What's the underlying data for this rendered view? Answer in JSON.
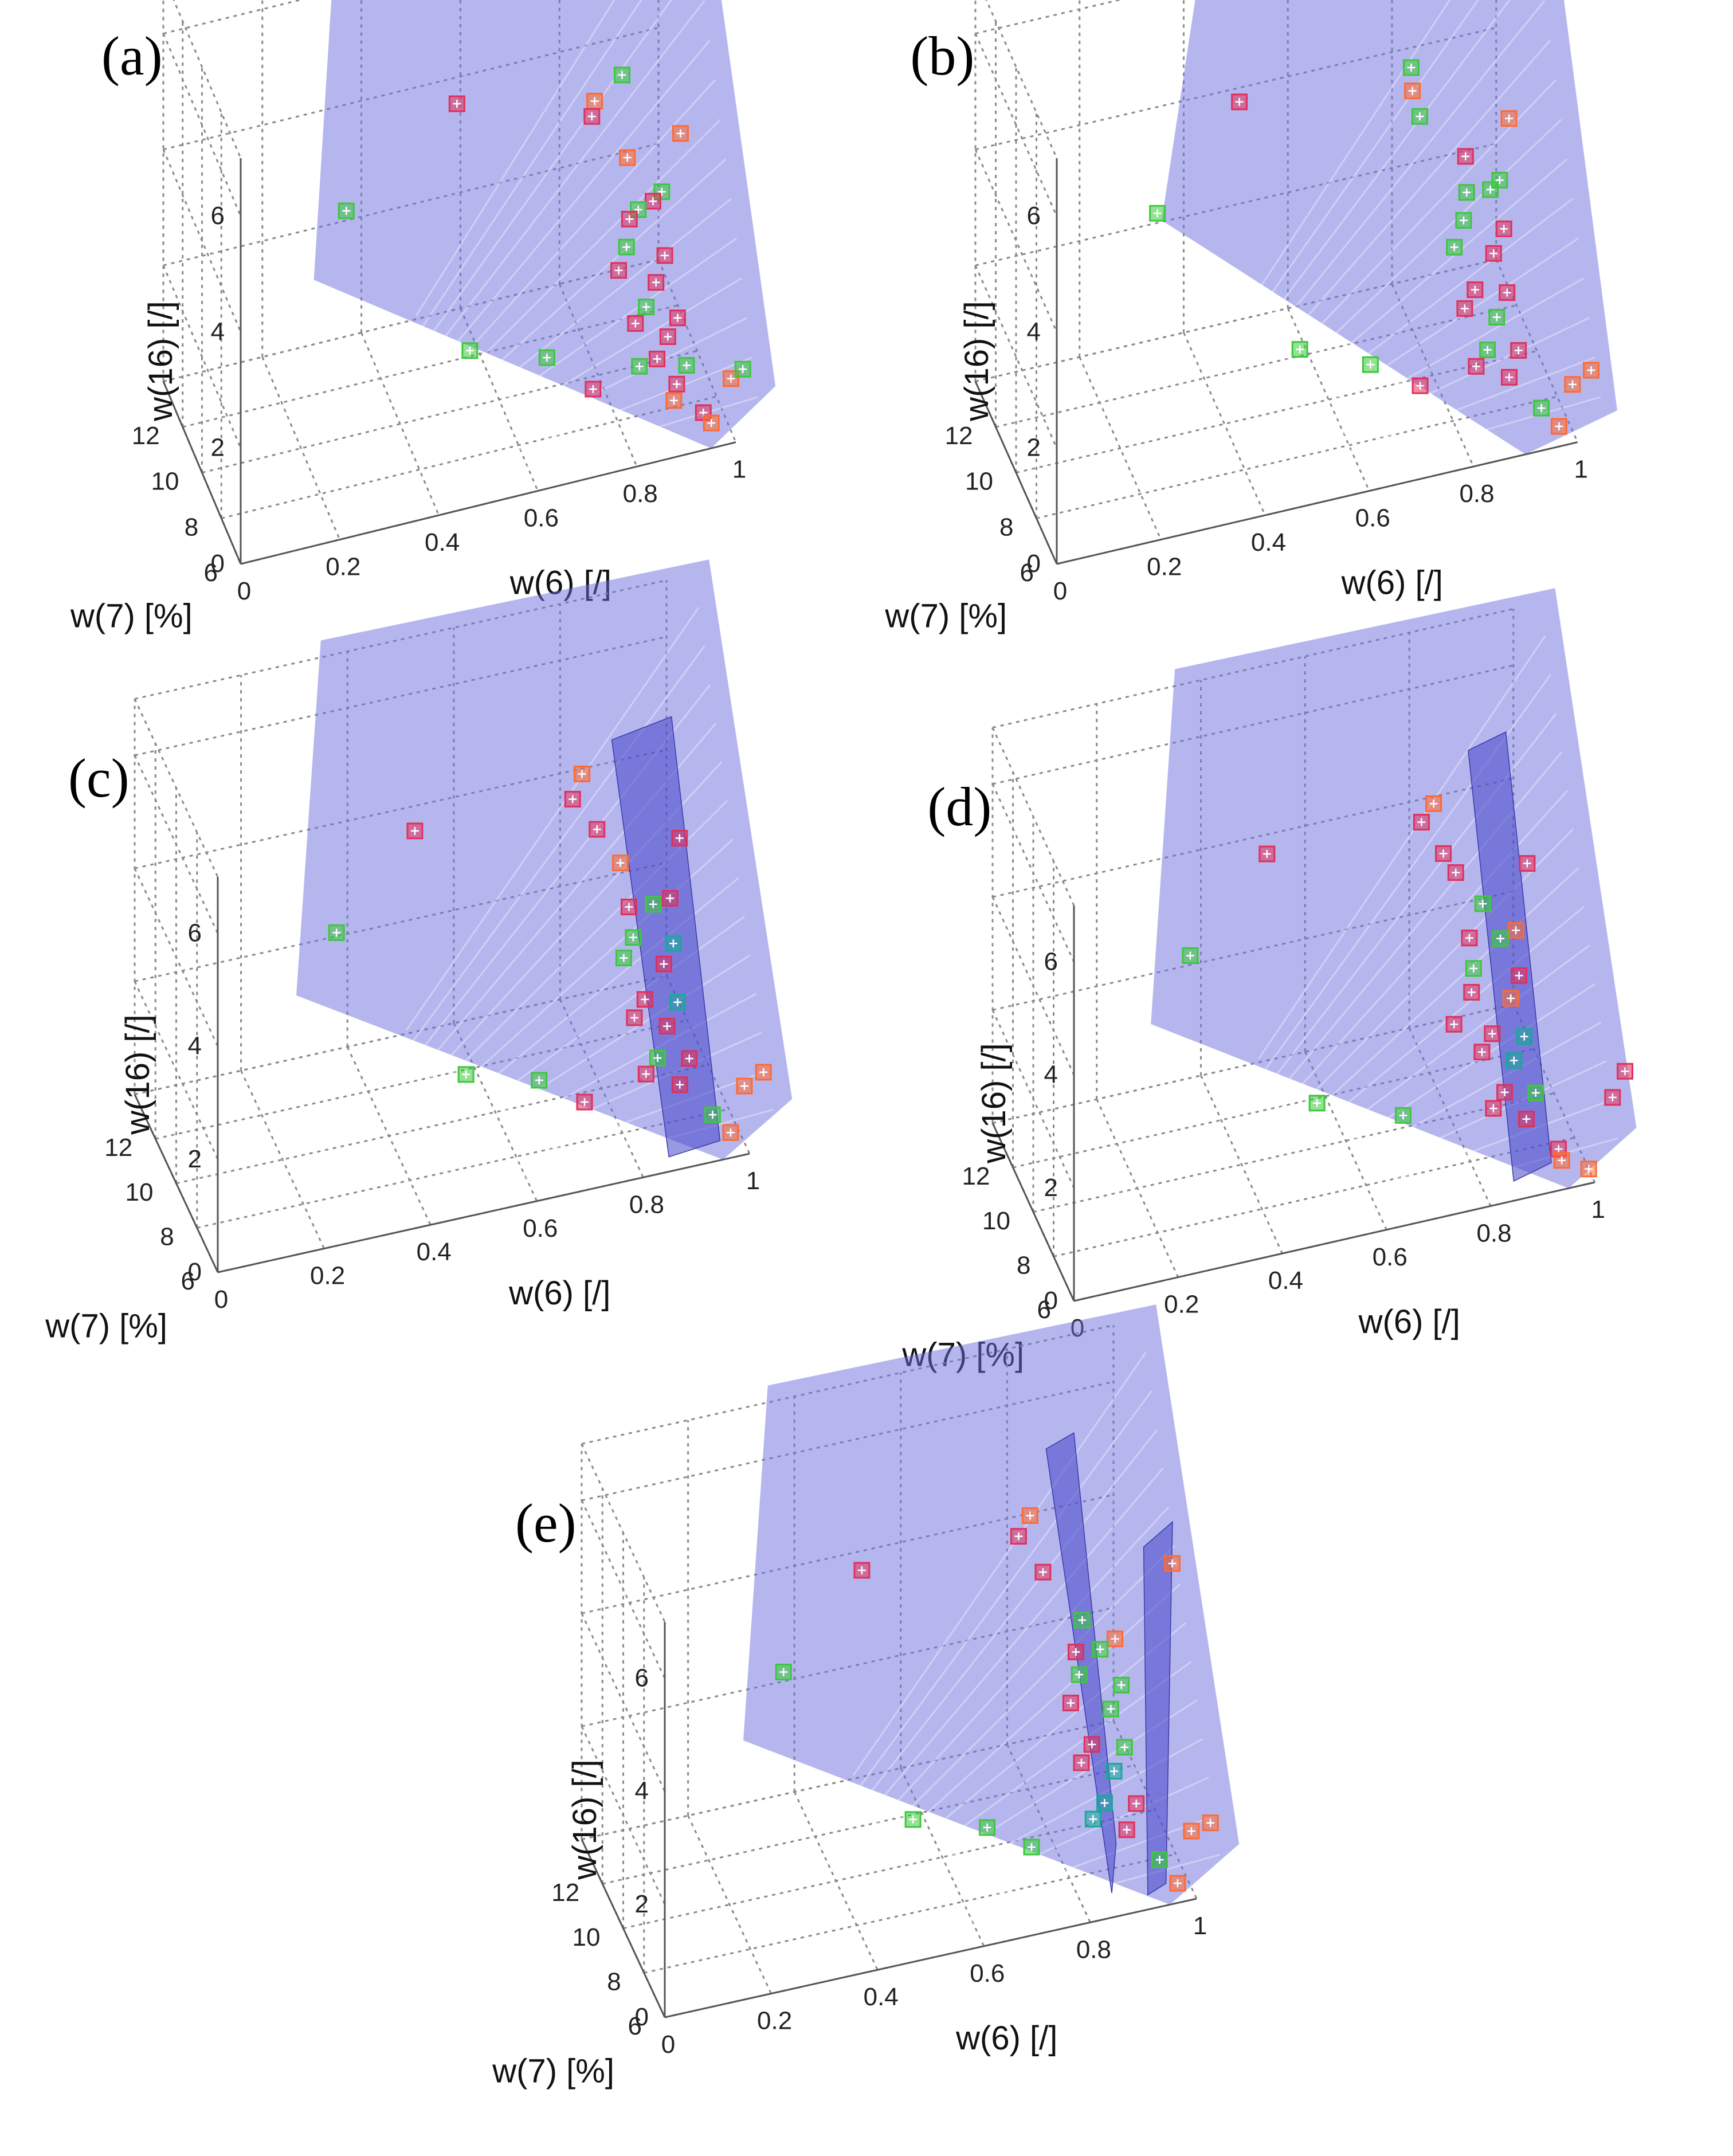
{
  "figure": {
    "colors": {
      "surface": "#6e6ee0",
      "surface_dark": "#4646c8",
      "class_red": "#e0305a",
      "class_green": "#3cc83c",
      "class_orange": "#ff6a30",
      "class_teal": "#1aa89a"
    }
  },
  "chart_data": [
    {
      "panel": "(a)",
      "type": "scatter",
      "xlabel": "w(7) [%]",
      "ylabel": "w(6) [/]",
      "zlabel": "w(16) [/]",
      "xticks": [
        "6",
        "8",
        "10",
        "12"
      ],
      "yticks": [
        "0",
        "0.2",
        "0.4",
        "0.6",
        "0.8",
        "1"
      ],
      "zticks": [
        "0",
        "2",
        "4",
        "6"
      ],
      "xlim": [
        6,
        14
      ],
      "ylim": [
        0,
        1
      ],
      "zlim": [
        0,
        7
      ],
      "surfaces": [
        "plane"
      ],
      "points": [
        {
          "w7": 6.5,
          "w6": 0.78,
          "w16": 6.6,
          "c": "green"
        },
        {
          "w7": 7.8,
          "w6": 0.75,
          "w16": 5.7,
          "c": "orange"
        },
        {
          "w7": 8.6,
          "w6": 0.76,
          "w16": 5.1,
          "c": "red"
        },
        {
          "w7": 11.8,
          "w6": 0.55,
          "w16": 4.5,
          "c": "red"
        },
        {
          "w7": 13.0,
          "w6": 0.35,
          "w16": 2.6,
          "c": "green"
        },
        {
          "w7": 12.0,
          "w6": 0.58,
          "w16": 0.1,
          "c": "green"
        },
        {
          "w7": 6.6,
          "w6": 0.9,
          "w16": 5.3,
          "c": "orange"
        },
        {
          "w7": 8.0,
          "w6": 0.82,
          "w16": 4.5,
          "c": "orange"
        },
        {
          "w7": 7.0,
          "w6": 0.87,
          "w16": 4.2,
          "c": "green"
        },
        {
          "w7": 7.4,
          "w6": 0.86,
          "w16": 3.9,
          "c": "red"
        },
        {
          "w7": 7.9,
          "w6": 0.84,
          "w16": 3.6,
          "c": "green"
        },
        {
          "w7": 8.3,
          "w6": 0.83,
          "w16": 3.3,
          "c": "red"
        },
        {
          "w7": 7.2,
          "w6": 0.88,
          "w16": 3.0,
          "c": "red"
        },
        {
          "w7": 8.6,
          "w6": 0.83,
          "w16": 2.7,
          "c": "green"
        },
        {
          "w7": 7.6,
          "w6": 0.87,
          "w16": 2.4,
          "c": "red"
        },
        {
          "w7": 8.9,
          "w6": 0.82,
          "w16": 2.2,
          "c": "red"
        },
        {
          "w7": 6.9,
          "w6": 0.9,
          "w16": 2.0,
          "c": "red"
        },
        {
          "w7": 8.1,
          "w6": 0.86,
          "w16": 1.8,
          "c": "green"
        },
        {
          "w7": 7.4,
          "w6": 0.89,
          "w16": 1.5,
          "c": "red"
        },
        {
          "w7": 8.7,
          "w6": 0.85,
          "w16": 1.3,
          "c": "red"
        },
        {
          "w7": 7.0,
          "w6": 0.92,
          "w16": 1.1,
          "c": "green"
        },
        {
          "w7": 8.0,
          "w6": 0.88,
          "w16": 0.9,
          "c": "red"
        },
        {
          "w7": 7.5,
          "w6": 0.91,
          "w16": 0.6,
          "c": "red"
        },
        {
          "w7": 8.8,
          "w6": 0.86,
          "w16": 0.5,
          "c": "green"
        },
        {
          "w7": 6.8,
          "w6": 0.95,
          "w16": 0.3,
          "c": "red"
        },
        {
          "w7": 7.8,
          "w6": 0.91,
          "w16": 0.2,
          "c": "orange"
        },
        {
          "w7": 6.5,
          "w6": 1.0,
          "w16": 0.9,
          "c": "orange"
        },
        {
          "w7": 6.3,
          "w6": 1.02,
          "w16": 1.1,
          "c": "green"
        },
        {
          "w7": 7.0,
          "w6": 0.97,
          "w16": 0.0,
          "c": "orange"
        },
        {
          "w7": 9.5,
          "w6": 0.78,
          "w16": 0.0,
          "c": "red"
        },
        {
          "w7": 11.2,
          "w6": 0.72,
          "w16": 0.0,
          "c": "green"
        }
      ]
    },
    {
      "panel": "(b)",
      "type": "scatter",
      "xlabel": "w(7) [%]",
      "ylabel": "w(6) [/]",
      "zlabel": "w(16) [/]",
      "xticks": [
        "6",
        "8",
        "10",
        "12"
      ],
      "yticks": [
        "0",
        "0.2",
        "0.4",
        "0.6",
        "0.8",
        "1"
      ],
      "zticks": [
        "0",
        "2",
        "4",
        "6"
      ],
      "xlim": [
        6,
        14
      ],
      "ylim": [
        0,
        1
      ],
      "zlim": [
        0,
        7
      ],
      "surfaces": [
        "plane-steep"
      ],
      "points": [
        {
          "w7": 7.0,
          "w6": 0.7,
          "w16": 6.7,
          "c": "green"
        },
        {
          "w7": 7.9,
          "w6": 0.72,
          "w16": 5.9,
          "c": "orange"
        },
        {
          "w7": 8.2,
          "w6": 0.74,
          "w16": 5.3,
          "c": "green"
        },
        {
          "w7": 11.6,
          "w6": 0.46,
          "w16": 4.8,
          "c": "red"
        },
        {
          "w7": 13.0,
          "w6": 0.33,
          "w16": 2.6,
          "c": "green"
        },
        {
          "w7": 11.8,
          "w6": 0.58,
          "w16": 0.2,
          "c": "green"
        },
        {
          "w7": 6.6,
          "w6": 0.88,
          "w16": 5.6,
          "c": "orange"
        },
        {
          "w7": 7.8,
          "w6": 0.82,
          "w16": 4.6,
          "c": "red"
        },
        {
          "w7": 7.0,
          "w6": 0.87,
          "w16": 4.4,
          "c": "green"
        },
        {
          "w7": 7.4,
          "w6": 0.86,
          "w16": 4.1,
          "c": "green"
        },
        {
          "w7": 8.2,
          "w6": 0.83,
          "w16": 3.8,
          "c": "green"
        },
        {
          "w7": 7.1,
          "w6": 0.88,
          "w16": 3.5,
          "c": "red"
        },
        {
          "w7": 8.5,
          "w6": 0.83,
          "w16": 3.2,
          "c": "green"
        },
        {
          "w7": 7.6,
          "w6": 0.87,
          "w16": 2.9,
          "c": "red"
        },
        {
          "w7": 8.9,
          "w6": 0.82,
          "w16": 2.6,
          "c": "green"
        },
        {
          "w7": 7.3,
          "w6": 0.89,
          "w16": 2.3,
          "c": "red"
        },
        {
          "w7": 8.4,
          "w6": 0.85,
          "w16": 2.0,
          "c": "red"
        },
        {
          "w7": 7.8,
          "w6": 0.88,
          "w16": 1.7,
          "c": "green"
        },
        {
          "w7": 8.9,
          "w6": 0.84,
          "w16": 1.5,
          "c": "red"
        },
        {
          "w7": 7.2,
          "w6": 0.91,
          "w16": 1.3,
          "c": "red"
        },
        {
          "w7": 8.2,
          "w6": 0.87,
          "w16": 1.0,
          "c": "green"
        },
        {
          "w7": 7.6,
          "w6": 0.9,
          "w16": 0.7,
          "c": "red"
        },
        {
          "w7": 8.8,
          "w6": 0.86,
          "w16": 0.5,
          "c": "red"
        },
        {
          "w7": 7.0,
          "w6": 0.95,
          "w16": 0.3,
          "c": "green"
        },
        {
          "w7": 6.5,
          "w6": 1.0,
          "w16": 0.8,
          "c": "orange"
        },
        {
          "w7": 6.2,
          "w6": 1.03,
          "w16": 1.1,
          "c": "orange"
        },
        {
          "w7": 6.8,
          "w6": 0.98,
          "w16": 0.0,
          "c": "orange"
        },
        {
          "w7": 9.7,
          "w6": 0.77,
          "w16": 0.0,
          "c": "red"
        },
        {
          "w7": 11.0,
          "w6": 0.7,
          "w16": 0.0,
          "c": "green"
        }
      ]
    },
    {
      "panel": "(c)",
      "type": "scatter",
      "xlabel": "w(7) [%]",
      "ylabel": "w(6) [/]",
      "zlabel": "w(16) [/]",
      "xticks": [
        "6",
        "8",
        "10",
        "12"
      ],
      "yticks": [
        "0",
        "0.2",
        "0.4",
        "0.6",
        "0.8",
        "1"
      ],
      "zticks": [
        "0",
        "2",
        "4",
        "6"
      ],
      "xlim": [
        6,
        14
      ],
      "ylim": [
        0,
        1
      ],
      "zlim": [
        0,
        7
      ],
      "surfaces": [
        "plane",
        "wedge"
      ],
      "points": [
        {
          "w7": 7.8,
          "w6": 0.72,
          "w16": 6.6,
          "c": "orange"
        },
        {
          "w7": 8.7,
          "w6": 0.72,
          "w16": 5.8,
          "c": "red"
        },
        {
          "w7": 8.4,
          "w6": 0.76,
          "w16": 5.3,
          "c": "red"
        },
        {
          "w7": 11.6,
          "w6": 0.48,
          "w16": 4.6,
          "c": "red"
        },
        {
          "w7": 13.0,
          "w6": 0.36,
          "w16": 2.5,
          "c": "green"
        },
        {
          "w7": 11.8,
          "w6": 0.58,
          "w16": 0.0,
          "c": "green"
        },
        {
          "w7": 6.6,
          "w6": 0.88,
          "w16": 5.6,
          "c": "red"
        },
        {
          "w7": 8.2,
          "w6": 0.8,
          "w16": 4.7,
          "c": "orange"
        },
        {
          "w7": 7.0,
          "w6": 0.87,
          "w16": 4.4,
          "c": "red"
        },
        {
          "w7": 7.6,
          "w6": 0.85,
          "w16": 4.1,
          "c": "green"
        },
        {
          "w7": 8.4,
          "w6": 0.82,
          "w16": 3.8,
          "c": "red"
        },
        {
          "w7": 7.2,
          "w6": 0.88,
          "w16": 3.5,
          "c": "teal"
        },
        {
          "w7": 8.5,
          "w6": 0.83,
          "w16": 3.2,
          "c": "green"
        },
        {
          "w7": 7.6,
          "w6": 0.87,
          "w16": 3.0,
          "c": "red"
        },
        {
          "w7": 8.9,
          "w6": 0.82,
          "w16": 2.7,
          "c": "green"
        },
        {
          "w7": 7.3,
          "w6": 0.89,
          "w16": 2.4,
          "c": "teal"
        },
        {
          "w7": 8.4,
          "w6": 0.85,
          "w16": 2.1,
          "c": "red"
        },
        {
          "w7": 7.8,
          "w6": 0.88,
          "w16": 1.8,
          "c": "red"
        },
        {
          "w7": 8.9,
          "w6": 0.84,
          "w16": 1.6,
          "c": "red"
        },
        {
          "w7": 7.2,
          "w6": 0.91,
          "w16": 1.4,
          "c": "red"
        },
        {
          "w7": 8.2,
          "w6": 0.87,
          "w16": 1.1,
          "c": "green"
        },
        {
          "w7": 7.6,
          "w6": 0.9,
          "w16": 0.8,
          "c": "red"
        },
        {
          "w7": 8.8,
          "w6": 0.86,
          "w16": 0.6,
          "c": "red"
        },
        {
          "w7": 7.0,
          "w6": 0.95,
          "w16": 0.4,
          "c": "green"
        },
        {
          "w7": 6.5,
          "w6": 1.0,
          "w16": 1.0,
          "c": "orange"
        },
        {
          "w7": 6.2,
          "w6": 1.03,
          "w16": 1.3,
          "c": "orange"
        },
        {
          "w7": 6.8,
          "w6": 0.98,
          "w16": 0.1,
          "c": "orange"
        },
        {
          "w7": 9.6,
          "w6": 0.76,
          "w16": 0.0,
          "c": "red"
        },
        {
          "w7": 10.9,
          "w6": 0.7,
          "w16": 0.0,
          "c": "green"
        }
      ]
    },
    {
      "panel": "(d)",
      "type": "scatter",
      "xlabel": "w(7) [%]",
      "ylabel": "w(6) [/]",
      "zlabel": "w(16) [/]",
      "xticks": [
        "6",
        "8",
        "10",
        "12"
      ],
      "yticks": [
        "0",
        "0.2",
        "0.4",
        "0.6",
        "0.8",
        "1"
      ],
      "zticks": [
        "0",
        "2",
        "4",
        "6"
      ],
      "xlim": [
        6,
        14
      ],
      "ylim": [
        0,
        1
      ],
      "zlim": [
        0,
        7
      ],
      "surfaces": [
        "plane",
        "slab"
      ],
      "points": [
        {
          "w7": 7.5,
          "w6": 0.72,
          "w16": 6.7,
          "c": "orange"
        },
        {
          "w7": 8.7,
          "w6": 0.72,
          "w16": 5.9,
          "c": "red"
        },
        {
          "w7": 8.6,
          "w6": 0.76,
          "w16": 5.3,
          "c": "red"
        },
        {
          "w7": 8.4,
          "w6": 0.78,
          "w16": 5.0,
          "c": "red"
        },
        {
          "w7": 11.6,
          "w6": 0.48,
          "w16": 4.7,
          "c": "red"
        },
        {
          "w7": 13.0,
          "w6": 0.36,
          "w16": 2.6,
          "c": "green"
        },
        {
          "w7": 11.8,
          "w6": 0.58,
          "w16": 0.0,
          "c": "green"
        },
        {
          "w7": 6.5,
          "w6": 0.88,
          "w16": 5.7,
          "c": "red"
        },
        {
          "w7": 7.8,
          "w6": 0.82,
          "w16": 4.6,
          "c": "green"
        },
        {
          "w7": 7.1,
          "w6": 0.87,
          "w16": 4.3,
          "c": "orange"
        },
        {
          "w7": 7.6,
          "w6": 0.85,
          "w16": 4.0,
          "c": "green"
        },
        {
          "w7": 8.6,
          "w6": 0.81,
          "w16": 3.7,
          "c": "red"
        },
        {
          "w7": 7.3,
          "w6": 0.88,
          "w16": 3.4,
          "c": "red"
        },
        {
          "w7": 8.7,
          "w6": 0.82,
          "w16": 3.1,
          "c": "green"
        },
        {
          "w7": 7.6,
          "w6": 0.87,
          "w16": 2.9,
          "c": "orange"
        },
        {
          "w7": 8.9,
          "w6": 0.82,
          "w16": 2.6,
          "c": "red"
        },
        {
          "w7": 7.3,
          "w6": 0.89,
          "w16": 2.3,
          "c": "teal"
        },
        {
          "w7": 8.4,
          "w6": 0.85,
          "w16": 2.0,
          "c": "red"
        },
        {
          "w7": 9.6,
          "w6": 0.8,
          "w16": 1.8,
          "c": "red"
        },
        {
          "w7": 7.8,
          "w6": 0.88,
          "w16": 1.7,
          "c": "teal"
        },
        {
          "w7": 8.9,
          "w6": 0.84,
          "w16": 1.5,
          "c": "red"
        },
        {
          "w7": 7.2,
          "w6": 0.91,
          "w16": 1.3,
          "c": "green"
        },
        {
          "w7": 8.2,
          "w6": 0.87,
          "w16": 1.0,
          "c": "red"
        },
        {
          "w7": 7.6,
          "w6": 0.9,
          "w16": 0.7,
          "c": "red"
        },
        {
          "w7": 8.8,
          "w6": 0.86,
          "w16": 0.5,
          "c": "red"
        },
        {
          "w7": 7.0,
          "w6": 0.95,
          "w16": 0.3,
          "c": "red"
        },
        {
          "w7": 6.3,
          "w6": 1.04,
          "w16": 1.3,
          "c": "red"
        },
        {
          "w7": 6.1,
          "w6": 1.06,
          "w16": 1.8,
          "c": "red"
        },
        {
          "w7": 6.6,
          "w6": 1.0,
          "w16": 0.0,
          "c": "orange"
        },
        {
          "w7": 7.2,
          "w6": 0.96,
          "w16": 0.0,
          "c": "orange"
        },
        {
          "w7": 10.5,
          "w6": 0.72,
          "w16": 0.0,
          "c": "green"
        }
      ]
    },
    {
      "panel": "(e)",
      "type": "scatter",
      "xlabel": "w(7) [%]",
      "ylabel": "w(6) [/]",
      "zlabel": "w(16) [/]",
      "xticks": [
        "6",
        "8",
        "10",
        "12"
      ],
      "yticks": [
        "0",
        "0.2",
        "0.4",
        "0.6",
        "0.8",
        "1"
      ],
      "zticks": [
        "0",
        "2",
        "4",
        "6"
      ],
      "xlim": [
        6,
        14
      ],
      "ylim": [
        0,
        1
      ],
      "zlim": [
        0,
        7
      ],
      "surfaces": [
        "plane",
        "v-wedge"
      ],
      "points": [
        {
          "w7": 7.7,
          "w6": 0.72,
          "w16": 6.7,
          "c": "orange"
        },
        {
          "w7": 8.8,
          "w6": 0.72,
          "w16": 5.9,
          "c": "red"
        },
        {
          "w7": 8.5,
          "w6": 0.76,
          "w16": 5.3,
          "c": "red"
        },
        {
          "w7": 11.6,
          "w6": 0.48,
          "w16": 4.7,
          "c": "red"
        },
        {
          "w7": 13.0,
          "w6": 0.36,
          "w16": 2.6,
          "c": "green"
        },
        {
          "w7": 11.8,
          "w6": 0.58,
          "w16": 0.0,
          "c": "green"
        },
        {
          "w7": 6.3,
          "w6": 0.96,
          "w16": 5.9,
          "c": "orange"
        },
        {
          "w7": 7.8,
          "w6": 0.82,
          "w16": 4.6,
          "c": "green"
        },
        {
          "w7": 7.2,
          "w6": 0.87,
          "w16": 4.4,
          "c": "orange"
        },
        {
          "w7": 7.6,
          "w6": 0.85,
          "w16": 4.1,
          "c": "green"
        },
        {
          "w7": 8.4,
          "w6": 0.82,
          "w16": 3.8,
          "c": "red"
        },
        {
          "w7": 7.1,
          "w6": 0.88,
          "w16": 3.6,
          "c": "green"
        },
        {
          "w7": 8.6,
          "w6": 0.83,
          "w16": 3.3,
          "c": "green"
        },
        {
          "w7": 7.6,
          "w6": 0.87,
          "w16": 3.0,
          "c": "green"
        },
        {
          "w7": 8.9,
          "w6": 0.82,
          "w16": 2.7,
          "c": "red"
        },
        {
          "w7": 7.3,
          "w6": 0.89,
          "w16": 2.4,
          "c": "green"
        },
        {
          "w7": 8.4,
          "w6": 0.85,
          "w16": 2.1,
          "c": "red"
        },
        {
          "w7": 7.8,
          "w6": 0.88,
          "w16": 1.8,
          "c": "teal"
        },
        {
          "w7": 8.9,
          "w6": 0.84,
          "w16": 1.6,
          "c": "red"
        },
        {
          "w7": 7.2,
          "w6": 0.91,
          "w16": 1.4,
          "c": "red"
        },
        {
          "w7": 8.2,
          "w6": 0.87,
          "w16": 1.1,
          "c": "teal"
        },
        {
          "w7": 7.6,
          "w6": 0.9,
          "w16": 0.8,
          "c": "red"
        },
        {
          "w7": 8.8,
          "w6": 0.86,
          "w16": 0.6,
          "c": "teal"
        },
        {
          "w7": 7.0,
          "w6": 0.95,
          "w16": 0.4,
          "c": "green"
        },
        {
          "w7": 6.5,
          "w6": 1.0,
          "w16": 1.0,
          "c": "orange"
        },
        {
          "w7": 6.2,
          "w6": 1.03,
          "w16": 1.2,
          "c": "orange"
        },
        {
          "w7": 6.8,
          "w6": 0.98,
          "w16": 0.0,
          "c": "orange"
        },
        {
          "w7": 9.6,
          "w6": 0.76,
          "w16": 0.0,
          "c": "green"
        },
        {
          "w7": 10.8,
          "w6": 0.7,
          "w16": 0.0,
          "c": "green"
        }
      ]
    }
  ]
}
